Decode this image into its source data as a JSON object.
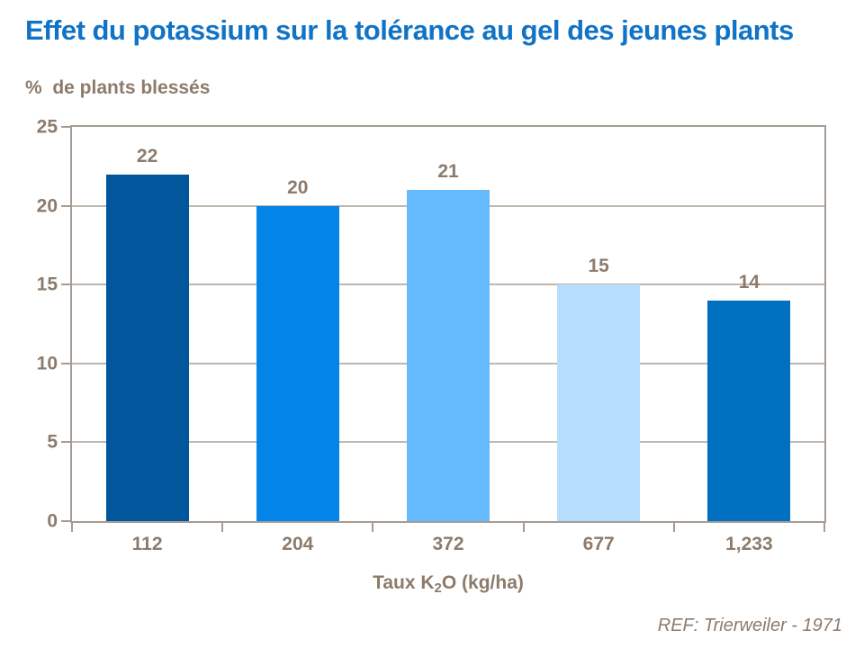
{
  "page": {
    "title": "Effet du potassium sur la tolérance au gel des jeunes plants",
    "y_unit_label": "%  de plants blessés",
    "reference": "REF: Trierweiler - 1971"
  },
  "chart_data": {
    "type": "bar",
    "title": "Effet du potassium sur la tolérance au gel des jeunes plants",
    "ylabel": "% de plants blessés",
    "xlabel": "Taux K2O (kg/ha)",
    "xlabel_parts": {
      "prefix": "Taux K",
      "subscript": "2",
      "suffix": "O (kg/ha)"
    },
    "categories": [
      "112",
      "204",
      "372",
      "677",
      "1,233"
    ],
    "values": [
      22,
      20,
      21,
      15,
      14
    ],
    "bar_colors": [
      "#02569B",
      "#0284E8",
      "#65BAFD",
      "#B5DDFD",
      "#0070C0"
    ],
    "ylim": [
      0,
      25
    ],
    "yticks": [
      0,
      5,
      10,
      15,
      20,
      25
    ],
    "gridline_values": [
      5,
      10,
      15,
      20
    ],
    "grid": "horizontal",
    "legend": "none",
    "annotation": "REF: Trierweiler - 1971"
  },
  "colors": {
    "title_blue": "#1173C6",
    "text_brown": "#8C7B6B",
    "axis_line": "#A59C93",
    "gridline": "#BFB8AF",
    "background": "#FFFFFF"
  }
}
